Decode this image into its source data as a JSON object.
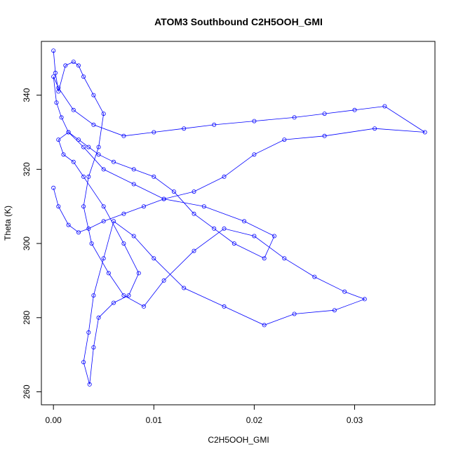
{
  "chart_data": {
    "type": "line",
    "title": "ATOM3 Southbound C2H5OOH_GMI",
    "xlabel": "C2H5OOH_GMI",
    "ylabel": "Theta (K)",
    "xlim": [
      -0.0012,
      0.038
    ],
    "ylim": [
      256.5,
      354.5
    ],
    "xticks": [
      0.0,
      0.01,
      0.02,
      0.03
    ],
    "xtick_labels": [
      "0.00",
      "0.01",
      "0.02",
      "0.03"
    ],
    "yticks": [
      260,
      280,
      300,
      320,
      340
    ],
    "ytick_labels": [
      "260",
      "280",
      "300",
      "320",
      "340"
    ],
    "grid": false,
    "legend": "none",
    "series": [
      {
        "color": "#0000ff",
        "marker": "open-circle",
        "x": [
          0.0,
          0.0002,
          0.0005,
          0.0012,
          0.002,
          0.0025,
          0.003,
          0.004,
          0.005,
          0.0045,
          0.0035,
          0.003,
          0.0038,
          0.0055,
          0.007,
          0.009,
          0.011,
          0.014,
          0.017,
          0.02,
          0.023,
          0.026,
          0.029,
          0.031,
          0.028,
          0.024,
          0.021,
          0.017,
          0.013,
          0.01,
          0.008,
          0.006,
          0.005,
          0.004,
          0.0035,
          0.003,
          0.0036,
          0.004,
          0.0045,
          0.006,
          0.0075,
          0.0085,
          0.007,
          0.005,
          0.003,
          0.002,
          0.001,
          0.0005,
          0.0015,
          0.003,
          0.005,
          0.008,
          0.011,
          0.015,
          0.019,
          0.022,
          0.021,
          0.018,
          0.016,
          0.014,
          0.012,
          0.01,
          0.008,
          0.006,
          0.0045,
          0.0035,
          0.0025,
          0.0015,
          0.0008,
          0.0003,
          0.0,
          0.0005,
          0.002,
          0.004,
          0.007,
          0.01,
          0.013,
          0.016,
          0.02,
          0.024,
          0.027,
          0.03,
          0.033,
          0.037,
          0.032,
          0.027,
          0.023,
          0.02,
          0.017,
          0.014,
          0.011,
          0.009,
          0.007,
          0.005,
          0.0035,
          0.0025,
          0.0015,
          0.0005,
          0.0
        ],
        "y": [
          352,
          346,
          341,
          348,
          349,
          348,
          345,
          340,
          335,
          326,
          318,
          310,
          300,
          292,
          286,
          283,
          290,
          298,
          304,
          302,
          296,
          291,
          287,
          285,
          282,
          281,
          278,
          283,
          288,
          296,
          302,
          306,
          296,
          286,
          276,
          268,
          262,
          272,
          280,
          284,
          286,
          292,
          300,
          310,
          318,
          322,
          324,
          328,
          330,
          326,
          320,
          316,
          312,
          310,
          306,
          302,
          296,
          300,
          304,
          308,
          314,
          318,
          320,
          322,
          324,
          326,
          328,
          330,
          334,
          338,
          345,
          342,
          336,
          332,
          329,
          330,
          331,
          332,
          333,
          334,
          335,
          336,
          337,
          330,
          331,
          329,
          328,
          324,
          318,
          314,
          312,
          310,
          308,
          306,
          304,
          303,
          305,
          310,
          315
        ]
      }
    ]
  }
}
